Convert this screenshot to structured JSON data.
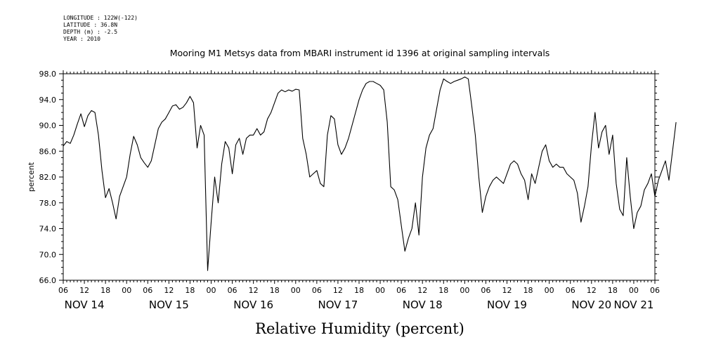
{
  "meta": {
    "longitude": "LONGITUDE : 122W(-122)",
    "latitude": "LATITUDE : 36.8N",
    "depth": "DEPTH (m) : -2.5",
    "year": "YEAR : 2010"
  },
  "chart_data": {
    "type": "line",
    "title": "Mooring M1 Metsys data from MBARI instrument id 1396 at original sampling intervals",
    "xlabel": "Relative Humidity (percent)",
    "ylabel": "percent",
    "xlim": [
      6,
      174
    ],
    "ylim": [
      66,
      98
    ],
    "yticks": [
      66,
      70,
      74,
      78,
      82,
      86,
      90,
      94,
      98
    ],
    "hour_tick_labels": [
      "06",
      "12",
      "18",
      "00",
      "06",
      "12",
      "18",
      "00",
      "06",
      "12",
      "18",
      "00",
      "06",
      "12",
      "18",
      "00",
      "06",
      "12",
      "18",
      "00",
      "06",
      "12",
      "18",
      "00",
      "06",
      "12",
      "18",
      "00",
      "06"
    ],
    "day_labels": [
      "NOV 14",
      "NOV 15",
      "NOV 16",
      "NOV 17",
      "NOV 18",
      "NOV 19",
      "NOV 20",
      "NOV 21"
    ],
    "series": [
      {
        "color": "#000000",
        "x_unit": "hours since NOV 14 00:00",
        "points": [
          [
            6,
            86.8
          ],
          [
            7,
            87.5
          ],
          [
            8,
            87.2
          ],
          [
            9,
            88.5
          ],
          [
            10,
            90.2
          ],
          [
            11,
            91.8
          ],
          [
            12,
            89.8
          ],
          [
            13,
            91.5
          ],
          [
            14,
            92.3
          ],
          [
            15,
            92.0
          ],
          [
            16,
            88.5
          ],
          [
            17,
            83.0
          ],
          [
            18,
            78.8
          ],
          [
            19,
            80.2
          ],
          [
            20,
            78.0
          ],
          [
            21,
            75.5
          ],
          [
            22,
            79.0
          ],
          [
            23,
            80.5
          ],
          [
            24,
            82.0
          ],
          [
            25,
            85.5
          ],
          [
            26,
            88.3
          ],
          [
            27,
            87.0
          ],
          [
            28,
            85.0
          ],
          [
            29,
            84.2
          ],
          [
            30,
            83.5
          ],
          [
            31,
            84.5
          ],
          [
            32,
            87.0
          ],
          [
            33,
            89.5
          ],
          [
            34,
            90.5
          ],
          [
            35,
            91.0
          ],
          [
            36,
            92.0
          ],
          [
            37,
            93.0
          ],
          [
            38,
            93.2
          ],
          [
            39,
            92.5
          ],
          [
            40,
            92.8
          ],
          [
            41,
            93.5
          ],
          [
            42,
            94.5
          ],
          [
            43,
            93.5
          ],
          [
            44,
            86.5
          ],
          [
            45,
            90.0
          ],
          [
            46,
            88.5
          ],
          [
            47,
            67.5
          ],
          [
            48,
            75.0
          ],
          [
            49,
            82.0
          ],
          [
            50,
            78.0
          ],
          [
            51,
            84.0
          ],
          [
            52,
            87.5
          ],
          [
            53,
            86.5
          ],
          [
            54,
            82.5
          ],
          [
            55,
            87.0
          ],
          [
            56,
            88.0
          ],
          [
            57,
            85.5
          ],
          [
            58,
            88.0
          ],
          [
            59,
            88.5
          ],
          [
            60,
            88.5
          ],
          [
            61,
            89.5
          ],
          [
            62,
            88.5
          ],
          [
            63,
            89.0
          ],
          [
            64,
            91.0
          ],
          [
            65,
            92.0
          ],
          [
            66,
            93.5
          ],
          [
            67,
            95.0
          ],
          [
            68,
            95.5
          ],
          [
            69,
            95.2
          ],
          [
            70,
            95.5
          ],
          [
            71,
            95.3
          ],
          [
            72,
            95.6
          ],
          [
            73,
            95.5
          ],
          [
            74,
            88.0
          ],
          [
            75,
            85.5
          ],
          [
            76,
            82.0
          ],
          [
            77,
            82.5
          ],
          [
            78,
            83.0
          ],
          [
            79,
            81.0
          ],
          [
            80,
            80.5
          ],
          [
            81,
            88.5
          ],
          [
            82,
            91.5
          ],
          [
            83,
            91.0
          ],
          [
            84,
            87.0
          ],
          [
            85,
            85.5
          ],
          [
            86,
            86.5
          ],
          [
            87,
            88.0
          ],
          [
            88,
            90.0
          ],
          [
            89,
            92.0
          ],
          [
            90,
            94.0
          ],
          [
            91,
            95.5
          ],
          [
            92,
            96.5
          ],
          [
            93,
            96.8
          ],
          [
            94,
            96.8
          ],
          [
            95,
            96.5
          ],
          [
            96,
            96.2
          ],
          [
            97,
            95.5
          ],
          [
            98,
            90.5
          ],
          [
            99,
            80.5
          ],
          [
            100,
            80.0
          ],
          [
            101,
            78.5
          ],
          [
            102,
            74.5
          ],
          [
            103,
            70.5
          ],
          [
            104,
            72.5
          ],
          [
            105,
            74.0
          ],
          [
            106,
            78.0
          ],
          [
            107,
            73.0
          ],
          [
            108,
            82.0
          ],
          [
            109,
            86.5
          ],
          [
            110,
            88.5
          ],
          [
            111,
            89.5
          ],
          [
            112,
            92.5
          ],
          [
            113,
            95.5
          ],
          [
            114,
            97.2
          ],
          [
            115,
            96.8
          ],
          [
            116,
            96.5
          ],
          [
            117,
            96.8
          ],
          [
            118,
            97.0
          ],
          [
            119,
            97.2
          ],
          [
            120,
            97.5
          ],
          [
            121,
            97.2
          ],
          [
            122,
            93.0
          ],
          [
            123,
            88.5
          ],
          [
            124,
            82.0
          ],
          [
            125,
            76.5
          ],
          [
            126,
            79.0
          ],
          [
            127,
            80.5
          ],
          [
            128,
            81.5
          ],
          [
            129,
            82.0
          ],
          [
            130,
            81.5
          ],
          [
            131,
            81.0
          ],
          [
            132,
            82.5
          ],
          [
            133,
            84.0
          ],
          [
            134,
            84.5
          ],
          [
            135,
            84.0
          ],
          [
            136,
            82.5
          ],
          [
            137,
            81.5
          ],
          [
            138,
            78.5
          ],
          [
            139,
            82.5
          ],
          [
            140,
            81.0
          ],
          [
            141,
            83.5
          ],
          [
            142,
            86.0
          ],
          [
            143,
            87.0
          ],
          [
            144,
            84.5
          ],
          [
            145,
            83.5
          ],
          [
            146,
            84.0
          ],
          [
            147,
            83.5
          ],
          [
            148,
            83.5
          ],
          [
            149,
            82.5
          ],
          [
            150,
            82.0
          ],
          [
            151,
            81.5
          ],
          [
            152,
            79.5
          ],
          [
            153,
            75.0
          ],
          [
            154,
            77.5
          ],
          [
            155,
            80.5
          ],
          [
            156,
            87.0
          ],
          [
            157,
            92.0
          ],
          [
            158,
            86.5
          ],
          [
            159,
            89.0
          ],
          [
            160,
            90.0
          ],
          [
            161,
            85.5
          ],
          [
            162,
            88.5
          ],
          [
            163,
            81.0
          ],
          [
            164,
            77.0
          ],
          [
            165,
            76.0
          ],
          [
            166,
            85.0
          ],
          [
            167,
            79.0
          ],
          [
            168,
            74.0
          ],
          [
            169,
            76.5
          ],
          [
            170,
            77.5
          ],
          [
            171,
            80.0
          ],
          [
            172,
            81.0
          ],
          [
            173,
            82.5
          ],
          [
            174,
            79.0
          ],
          [
            175,
            81.5
          ],
          [
            176,
            83.0
          ],
          [
            177,
            84.5
          ],
          [
            178,
            81.5
          ],
          [
            179,
            86.0
          ],
          [
            180,
            90.5
          ]
        ]
      }
    ]
  }
}
